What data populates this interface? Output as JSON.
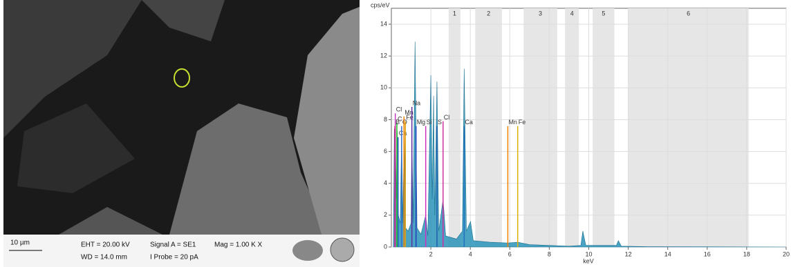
{
  "sem_panel": {
    "scale_bar": "10 µm",
    "eht": "EHT = 20.00 kV",
    "wd": "WD = 14.0 mm",
    "signal": "Signal A = SE1",
    "probe": "I Probe =   20 pA",
    "mag": "Mag =  1.00 K X"
  },
  "chart_data": {
    "type": "area",
    "y_label": "cps/eV",
    "x_label": "keV",
    "color": "#2a93b8",
    "x": [
      0.1,
      0.15,
      0.2,
      0.25,
      0.3,
      0.35,
      0.45,
      0.52,
      0.58,
      0.65,
      0.72,
      0.85,
      1.0,
      1.04,
      1.1,
      1.2,
      1.3,
      1.5,
      1.74,
      1.85,
      2.0,
      2.07,
      2.14,
      2.2,
      2.31,
      2.4,
      2.62,
      2.75,
      3.3,
      3.6,
      3.69,
      3.8,
      4.01,
      4.15,
      5.0,
      5.9,
      6.4,
      7.0,
      9.0,
      9.6,
      9.7,
      9.85,
      11.4,
      11.5,
      11.65,
      13,
      20
    ],
    "values": [
      0,
      7.4,
      7.5,
      3,
      7.3,
      2,
      1.5,
      7.2,
      1.5,
      7.3,
      1.2,
      1,
      1.5,
      7.6,
      1.5,
      12.9,
      1.2,
      0.8,
      2,
      0.7,
      10.8,
      3,
      9.5,
      2,
      10.4,
      1,
      3,
      0.7,
      0.5,
      1,
      11.2,
      1,
      1.6,
      0.4,
      0.3,
      0.25,
      0.3,
      0.15,
      0.05,
      0.1,
      1.0,
      0.1,
      0.1,
      0.4,
      0.05,
      0.02,
      0
    ],
    "xlim": [
      0,
      20
    ],
    "xticks": [
      2,
      4,
      6,
      8,
      10,
      12,
      14,
      16,
      18,
      20
    ],
    "ylim": [
      0,
      15
    ],
    "yticks": [
      0,
      2,
      4,
      6,
      8,
      10,
      12,
      14
    ],
    "grid": true,
    "regions": [
      {
        "label": "1",
        "range": [
          2.9,
          3.5
        ]
      },
      {
        "label": "2",
        "range": [
          4.25,
          5.6
        ]
      },
      {
        "label": "3",
        "range": [
          6.7,
          8.4
        ]
      },
      {
        "label": "4",
        "range": [
          8.8,
          9.5
        ]
      },
      {
        "label": "5",
        "range": [
          10.2,
          11.3
        ]
      },
      {
        "label": "6",
        "range": [
          12.0,
          18.1
        ]
      }
    ],
    "markers": [
      {
        "label": "Cl",
        "x": 0.2,
        "height": 8.4,
        "color": "#c040c0"
      },
      {
        "label": "C",
        "x": 0.28,
        "height": 7.8,
        "color": "#20c020"
      },
      {
        "label": "B",
        "x": 0.18,
        "height": 7.6,
        "color": "#d02080"
      },
      {
        "label": "Ca",
        "x": 0.34,
        "height": 6.9,
        "color": "#2060c0"
      },
      {
        "label": "O",
        "x": 0.52,
        "height": 7.6,
        "color": "#3070d0"
      },
      {
        "label": "Mn",
        "x": 0.64,
        "height": 8.2,
        "color": "#f08000"
      },
      {
        "label": "Fe",
        "x": 0.71,
        "height": 7.9,
        "color": "#e0a000"
      },
      {
        "label": "Na",
        "x": 1.04,
        "height": 8.8,
        "color": "#6030a0"
      },
      {
        "label": "Mg",
        "x": 1.25,
        "height": 7.6,
        "color": "#2040c0"
      },
      {
        "label": "Si",
        "x": 1.74,
        "height": 7.6,
        "color": "#d030c0"
      },
      {
        "label": "S",
        "x": 2.31,
        "height": 7.6,
        "color": "#2060b0"
      },
      {
        "label": "Cl",
        "x": 2.62,
        "height": 7.9,
        "color": "#d030a0"
      },
      {
        "label": "Ca",
        "x": 3.69,
        "height": 7.6,
        "color": "#2070c0"
      },
      {
        "label": "Mn",
        "x": 5.9,
        "height": 7.6,
        "color": "#f08000"
      },
      {
        "label": "Fe",
        "x": 6.4,
        "height": 7.6,
        "color": "#e0b000"
      }
    ]
  }
}
